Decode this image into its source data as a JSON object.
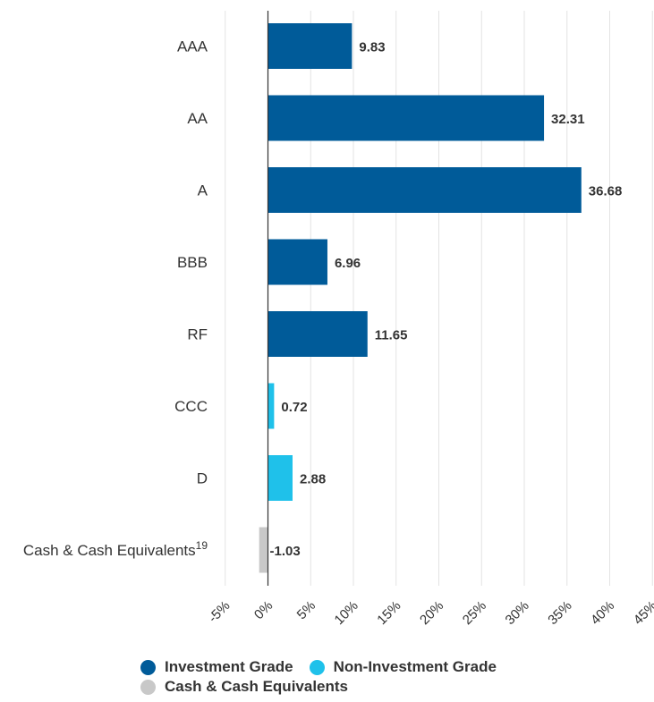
{
  "chart_data": {
    "type": "bar",
    "orientation": "horizontal",
    "categories": [
      "AAA",
      "AA",
      "A",
      "BBB",
      "RF",
      "CCC",
      "D",
      "Cash & Cash Equivalents"
    ],
    "category_superscripts": [
      "",
      "",
      "",
      "",
      "",
      "",
      "",
      "19"
    ],
    "values": [
      9.83,
      32.31,
      36.68,
      6.96,
      11.65,
      0.72,
      2.88,
      -1.03
    ],
    "value_labels": [
      "9.83",
      "32.31",
      "36.68",
      "6.96",
      "11.65",
      "0.72",
      "2.88",
      "-1.03"
    ],
    "groups": [
      "Investment Grade",
      "Investment Grade",
      "Investment Grade",
      "Investment Grade",
      "Investment Grade",
      "Non-Investment Grade",
      "Non-Investment Grade",
      "Cash & Cash Equivalents"
    ],
    "x_ticks": [
      -5,
      0,
      5,
      10,
      15,
      20,
      25,
      30,
      35,
      40,
      45
    ],
    "x_tick_labels": [
      "-5%",
      "0%",
      "5%",
      "10%",
      "15%",
      "20%",
      "25%",
      "30%",
      "35%",
      "40%",
      "45%"
    ],
    "xlim": [
      -5,
      45
    ],
    "grid": "vertical",
    "legend_position": "bottom",
    "title": "",
    "xlabel": "",
    "ylabel": ""
  },
  "legend": {
    "items": [
      {
        "label": "Investment Grade",
        "color": "#005b99"
      },
      {
        "label": "Non-Investment Grade",
        "color": "#1fc1ea"
      },
      {
        "label": "Cash & Cash Equivalents",
        "color": "#c8c8c8"
      }
    ]
  },
  "colors": {
    "Investment Grade": "#005b99",
    "Non-Investment Grade": "#1fc1ea",
    "Cash & Cash Equivalents": "#c8c8c8"
  }
}
